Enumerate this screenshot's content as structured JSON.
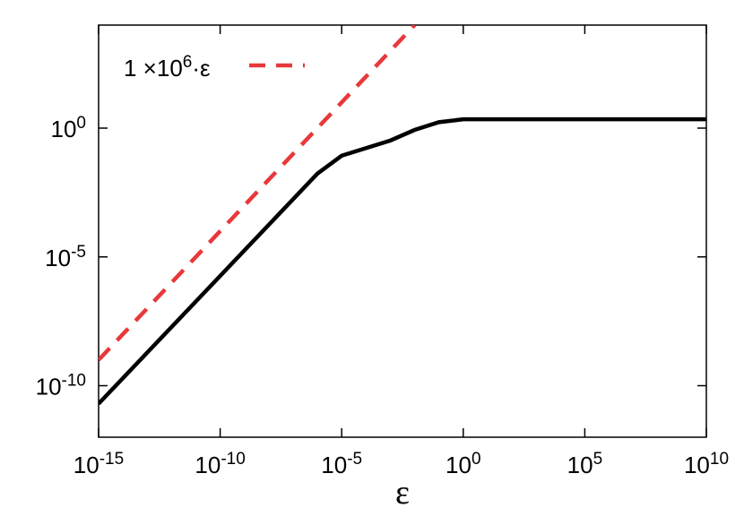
{
  "chart_data": {
    "type": "line",
    "xlabel": "ε",
    "xscale": "log",
    "yscale": "log",
    "xlim": [
      1e-15,
      10000000000.0
    ],
    "ylim": [
      1e-12,
      10000.0
    ],
    "xticks": [
      {
        "value": 1e-15,
        "label": "10^-15"
      },
      {
        "value": 1e-10,
        "label": "10^-10"
      },
      {
        "value": 1e-05,
        "label": "10^-5"
      },
      {
        "value": 1,
        "label": "10^0"
      },
      {
        "value": 100000.0,
        "label": "10^5"
      },
      {
        "value": 10000000000.0,
        "label": "10^10"
      }
    ],
    "yticks": [
      {
        "value": 1e-10,
        "label": "10^-10"
      },
      {
        "value": 1e-05,
        "label": "10^-5"
      },
      {
        "value": 1,
        "label": "10^0"
      }
    ],
    "legend": "upper left",
    "series": [
      {
        "color": "#000000",
        "dash": false,
        "x": [
          1e-15,
          1e-06,
          1e-05,
          0.001,
          0.01,
          0.1,
          1,
          100000.0,
          10000000000.0
        ],
        "values": [
          2e-11,
          0.017,
          0.085,
          0.33,
          0.85,
          1.7,
          2.2,
          2.2,
          2.2
        ]
      },
      {
        "name": "1 ×10^6·ε",
        "color": "#e8383a",
        "dash": true,
        "x": [
          1e-15,
          0.01
        ],
        "values": [
          1e-09,
          10000.0
        ]
      }
    ]
  }
}
